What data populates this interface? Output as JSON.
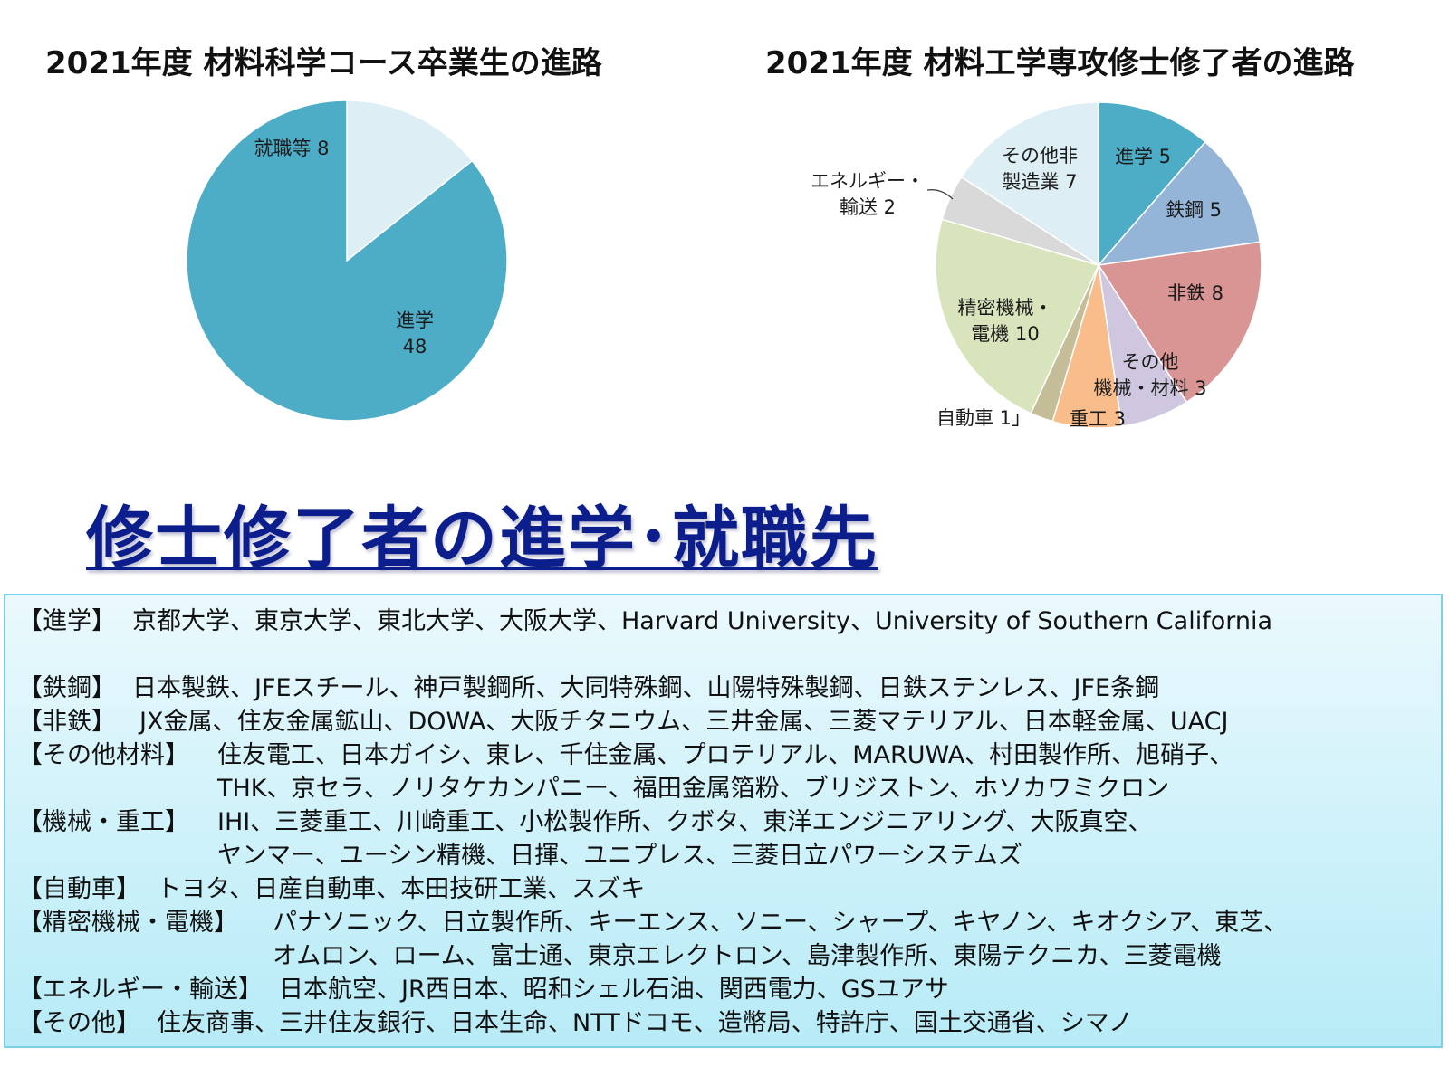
{
  "chart_data": [
    {
      "type": "pie",
      "title": "2021年度 材料科学コース卒業生の進路",
      "slices": [
        {
          "label": "就職等",
          "value": 8,
          "color": "#ddeff4",
          "display": "就職等 8"
        },
        {
          "label": "進学",
          "value": 48,
          "color": "#4dacc6",
          "display_lines": [
            "進学",
            "48"
          ]
        }
      ]
    },
    {
      "type": "pie",
      "title": "2021年度 材料工学専攻修士修了者の進路",
      "slices": [
        {
          "label": "進学",
          "value": 5,
          "color": "#4dacc6",
          "display_lines": [
            "進学 5"
          ]
        },
        {
          "label": "鉄鋼",
          "value": 5,
          "color": "#94b4d8",
          "display_lines": [
            "鉄鋼 5"
          ]
        },
        {
          "label": "非鉄",
          "value": 8,
          "color": "#d99594",
          "display_lines": [
            "非鉄 8"
          ]
        },
        {
          "label": "その他機械・材料",
          "value": 3,
          "color": "#cfc6df",
          "display_lines": [
            "その他",
            "機械・材料 3"
          ]
        },
        {
          "label": "重工",
          "value": 3,
          "color": "#f8bd8b",
          "display_lines": [
            "重工 3"
          ]
        },
        {
          "label": "自動車",
          "value": 1,
          "color": "#c4bd97",
          "display_lines": [
            "自動車 1」"
          ]
        },
        {
          "label": "精密機械・電機",
          "value": 10,
          "color": "#d8e4bc",
          "display_lines": [
            "精密機械・",
            "電機 10"
          ]
        },
        {
          "label": "エネルギー・輸送",
          "value": 2,
          "color": "#d9d9d9",
          "display_lines": [
            "エネルギー・",
            "輸送 2"
          ]
        },
        {
          "label": "その他非製造業",
          "value": 7,
          "color": "#ddeff4",
          "display_lines": [
            "その他非",
            "製造業 7"
          ]
        }
      ]
    }
  ],
  "headline": "修士修了者の進学･就職先",
  "destinations": [
    {
      "category": "【進学】",
      "lines": [
        "京都大学、東京大学、東北大学、大阪大学、Harvard University、University of Southern California"
      ]
    },
    {
      "category": "【鉄鋼】",
      "lines": [
        "日本製鉄、JFEスチール、神戸製鋼所、大同特殊鋼、山陽特殊製鋼、日鉄ステンレス、JFE条鋼"
      ]
    },
    {
      "category": "【非鉄】",
      "lines": [
        "JX金属、住友金属鉱山、DOWA、大阪チタニウム、三井金属、三菱マテリアル、日本軽金属、UACJ"
      ]
    },
    {
      "category": "【その他材料】",
      "lines": [
        "住友電工、日本ガイシ、東レ、千住金属、プロテリアル、MARUWA、村田製作所、旭硝子、",
        "THK、京セラ、ノリタケカンパニー、福田金属箔粉、ブリジストン、ホソカワミクロン"
      ]
    },
    {
      "category": "【機械・重工】",
      "lines": [
        "IHI、三菱重工、川崎重工、小松製作所、クボタ、東洋エンジニアリング、大阪真空、",
        "ヤンマー、ユーシン精機、日揮、ユニプレス、三菱日立パワーシステムズ"
      ]
    },
    {
      "category": "【自動車】",
      "lines": [
        "トヨタ、日産自動車、本田技研工業、スズキ"
      ]
    },
    {
      "category": "【精密機械・電機】",
      "lines": [
        "パナソニック、日立製作所、キーエンス、ソニー、シャープ、キヤノン、キオクシア、東芝、",
        "オムロン、ローム、富士通、東京エレクトロン、島津製作所、東陽テクニカ、三菱電機"
      ]
    },
    {
      "category": "【エネルギー・輸送】",
      "lines": [
        "日本航空、JR西日本、昭和シェル石油、関西電力、GSユアサ"
      ]
    },
    {
      "category": "【その他】",
      "lines": [
        "住友商事、三井住友銀行、日本生命、NTTドコモ、造幣局、特許庁、国土交通省、シマノ"
      ]
    }
  ]
}
